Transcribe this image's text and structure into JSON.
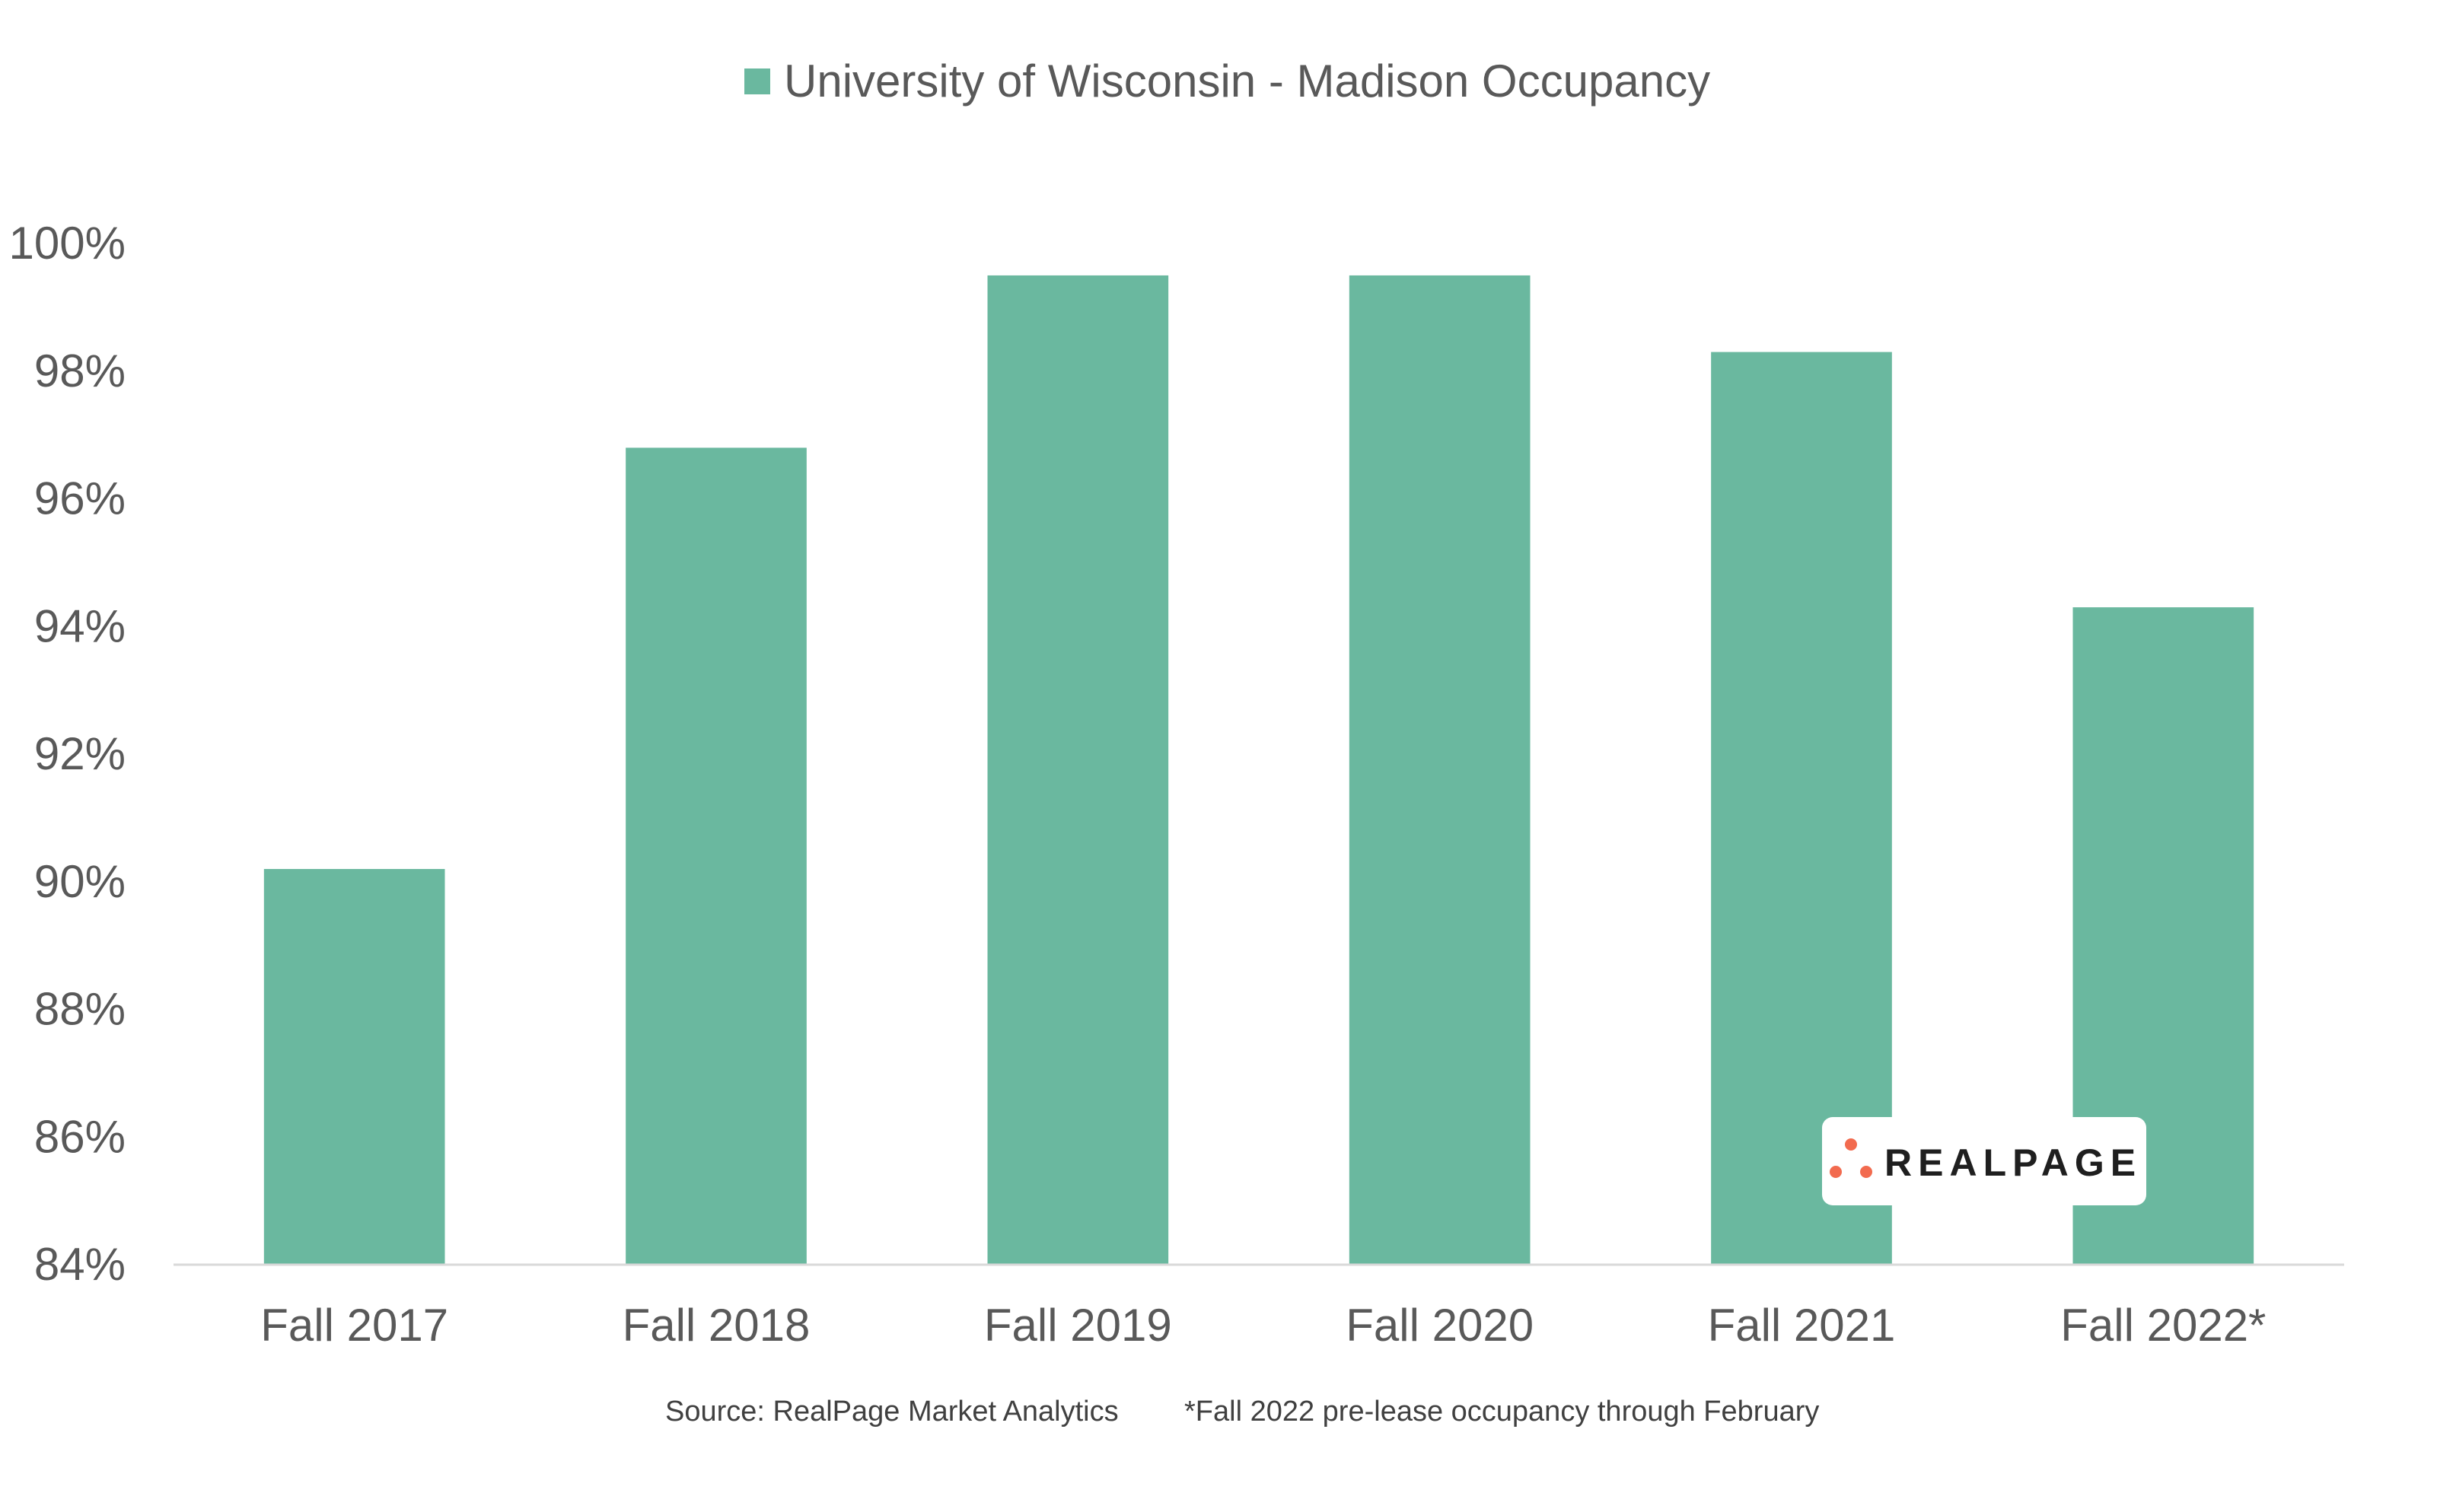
{
  "chart_data": {
    "type": "bar",
    "categories": [
      "Fall 2017",
      "Fall 2018",
      "Fall 2019",
      "Fall 2020",
      "Fall 2021",
      "Fall 2022*"
    ],
    "series": [
      {
        "name": "University of Wisconsin - Madison Occupancy",
        "values": [
          90.2,
          96.8,
          99.5,
          99.5,
          98.3,
          94.3
        ],
        "color": "#6ab89f"
      }
    ],
    "ylim": [
      84,
      100
    ],
    "yticks": [
      84,
      86,
      88,
      90,
      92,
      94,
      96,
      98,
      100
    ],
    "ytick_labels": [
      "84%",
      "86%",
      "88%",
      "90%",
      "92%",
      "94%",
      "96%",
      "98%",
      "100%"
    ],
    "grid": false,
    "legend_position": "top-center"
  },
  "footnotes": {
    "source": "Source: RealPage Market Analytics",
    "note": "*Fall 2022 pre-lease occupancy through February"
  },
  "logo": {
    "text": "REALPAGE",
    "accent_color": "#f26b4f"
  },
  "colors": {
    "bar": "#6ab89f",
    "axis": "#d9d9d9",
    "text": "#595959"
  }
}
